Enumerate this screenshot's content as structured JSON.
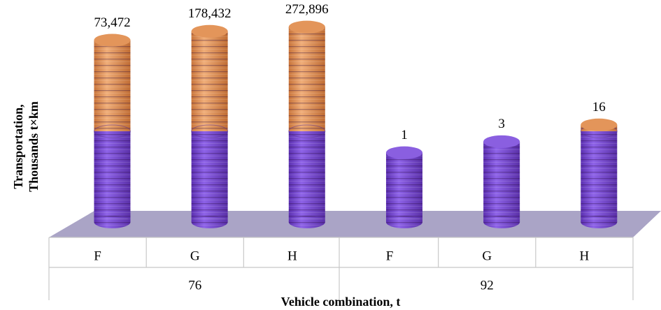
{
  "chart_data": {
    "type": "cylinder",
    "y_label": [
      "Transportation,",
      "Thousands t×km"
    ],
    "x_label": "Vehicle combination, t",
    "categories": [
      "F",
      "G",
      "H",
      "F",
      "G",
      "H"
    ],
    "groups": [
      "76",
      "92"
    ],
    "values": [
      73472,
      178432,
      272896,
      1,
      3,
      16
    ],
    "value_labels": [
      "73,472",
      "178,432",
      "272,896",
      "1",
      "3",
      "16"
    ],
    "log": true,
    "ylim": [
      0.001,
      1000000
    ],
    "colors": [
      "#7d4fd6",
      "#e3955a"
    ],
    "floor_color": "#aaa4c6"
  }
}
